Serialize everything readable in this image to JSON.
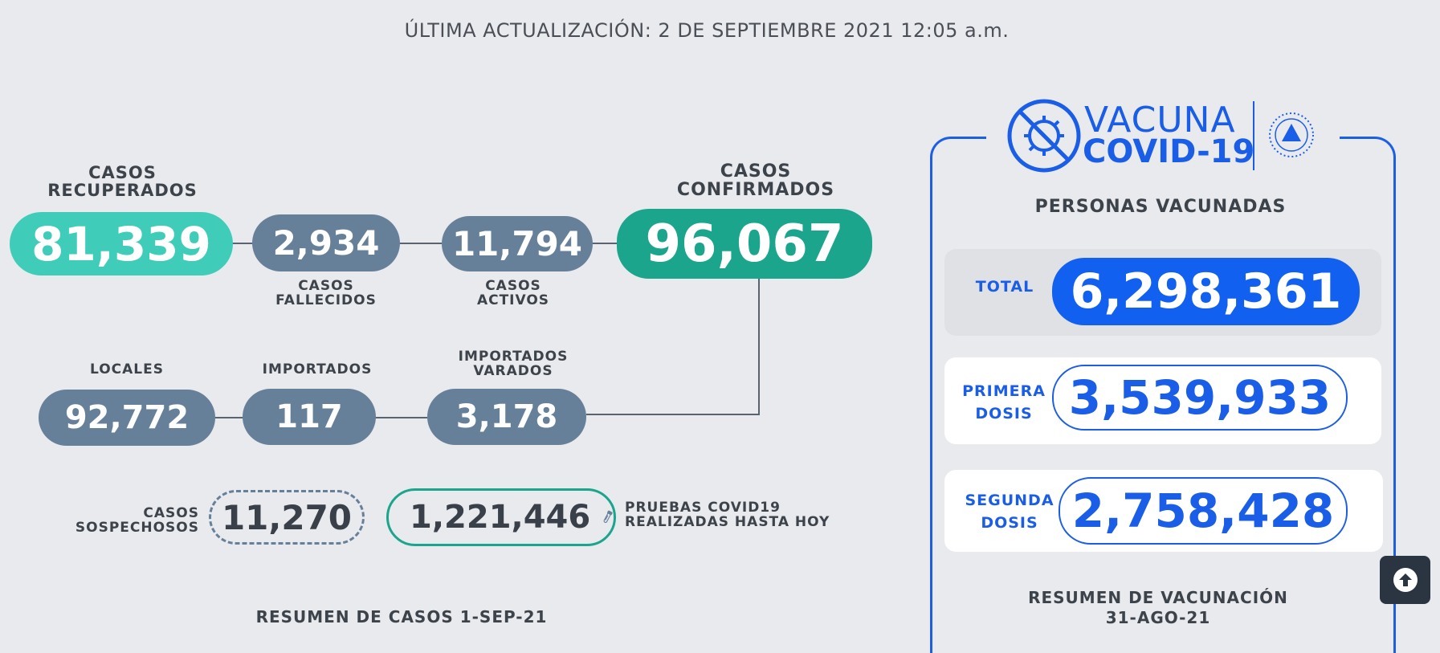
{
  "header": {
    "updated": "ÚLTIMA ACTUALIZACIÓN: 2 DE SEPTIEMBRE 2021 12:05 a.m."
  },
  "cases": {
    "recovered": {
      "label1": "CASOS",
      "label2": "RECUPERADOS",
      "value": "81,339"
    },
    "deaths": {
      "label1": "CASOS",
      "label2": "FALLECIDOS",
      "value": "2,934"
    },
    "active": {
      "label1": "CASOS",
      "label2": "ACTIVOS",
      "value": "11,794"
    },
    "confirmed": {
      "label1": "CASOS",
      "label2": "CONFIRMADOS",
      "value": "96,067"
    },
    "local": {
      "label": "LOCALES",
      "value": "92,772"
    },
    "imported": {
      "label": "IMPORTADOS",
      "value": "117"
    },
    "stranded": {
      "label1": "IMPORTADOS",
      "label2": "VARADOS",
      "value": "3,178"
    },
    "suspected": {
      "label1": "CASOS",
      "label2": "SOSPECHOSOS",
      "value": "11,270"
    },
    "tests": {
      "value": "1,221,446",
      "label1": "PRUEBAS COVID19",
      "label2": "REALIZADAS HASTA HOY"
    },
    "summary": "RESUMEN DE CASOS 1-SEP-21"
  },
  "vaccine": {
    "logo_line1": "VACUNA",
    "logo_line2": "COVID-19",
    "title": "PERSONAS VACUNADAS",
    "total": {
      "label": "TOTAL",
      "value": "6,298,361"
    },
    "first": {
      "label1": "PRIMERA",
      "label2": "DOSIS",
      "value": "3,539,933"
    },
    "second": {
      "label1": "SEGUNDA",
      "label2": "DOSIS",
      "value": "2,758,428"
    },
    "summary1": "RESUMEN DE VACUNACIÓN",
    "summary2": "31-AGO-21"
  },
  "icons": [
    "virus-crossed-icon",
    "national-seal-icon",
    "test-tube-icon",
    "arrow-up-icon"
  ],
  "colors": {
    "recovered": "#3fcdb9",
    "confirmed": "#1aa58c",
    "gray": "#67809a",
    "blue": "#1a5ee8",
    "dark_btn": "#2b3542"
  }
}
